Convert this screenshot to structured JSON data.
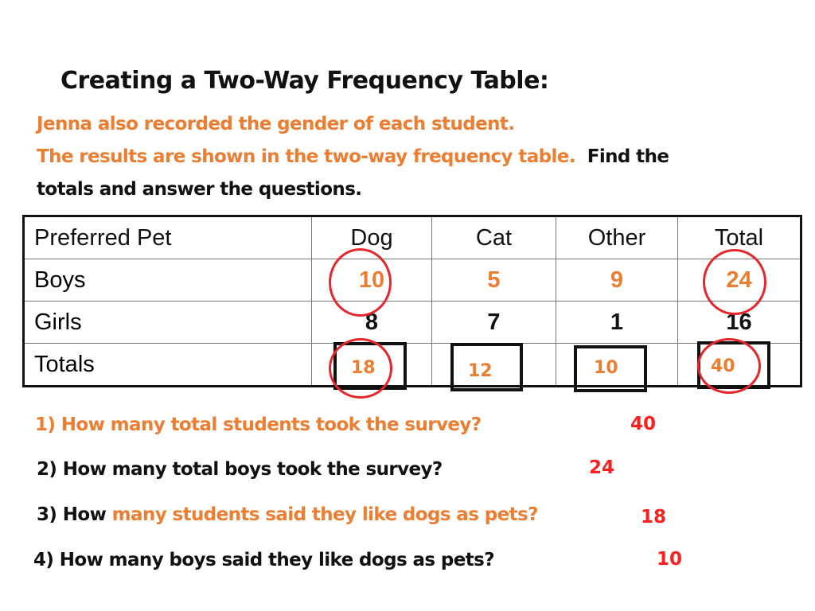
{
  "title": "Creating a Two-Way Frequency Table:",
  "intro": {
    "line1": "Jenna also recorded the gender of each student.",
    "line2": "The results are shown in the two-way frequency table.",
    "line2_dark": "Find the",
    "line3": "totals and answer the questions."
  },
  "table": {
    "header": [
      "Preferred Pet",
      "Dog",
      "Cat",
      "Other",
      "Total"
    ],
    "boys": {
      "label": "Boys",
      "values": [
        "10",
        "5",
        "9",
        "24"
      ]
    },
    "girls": {
      "label": "Girls",
      "values": [
        "8",
        "7",
        "1",
        "16"
      ]
    },
    "totals": {
      "label": "Totals",
      "values": [
        "18",
        "12",
        "10",
        "40"
      ]
    }
  },
  "questions": [
    {
      "prefix": "1) How many total students took the survey?",
      "rest": "",
      "answer": "40"
    },
    {
      "prefix": "2) How many total boys took the survey?",
      "rest": "",
      "answer": "24"
    },
    {
      "prefix": "3) How ",
      "rest": "many students said they like dogs as pets?",
      "answer": "18"
    },
    {
      "prefix": "4) How many boys said they like dogs as pets?",
      "rest": "",
      "answer": "10"
    }
  ],
  "colors": {
    "accent_orange": "#ED7D31",
    "answer_red": "#FF1F1F",
    "circle_red": "#E8252B"
  }
}
